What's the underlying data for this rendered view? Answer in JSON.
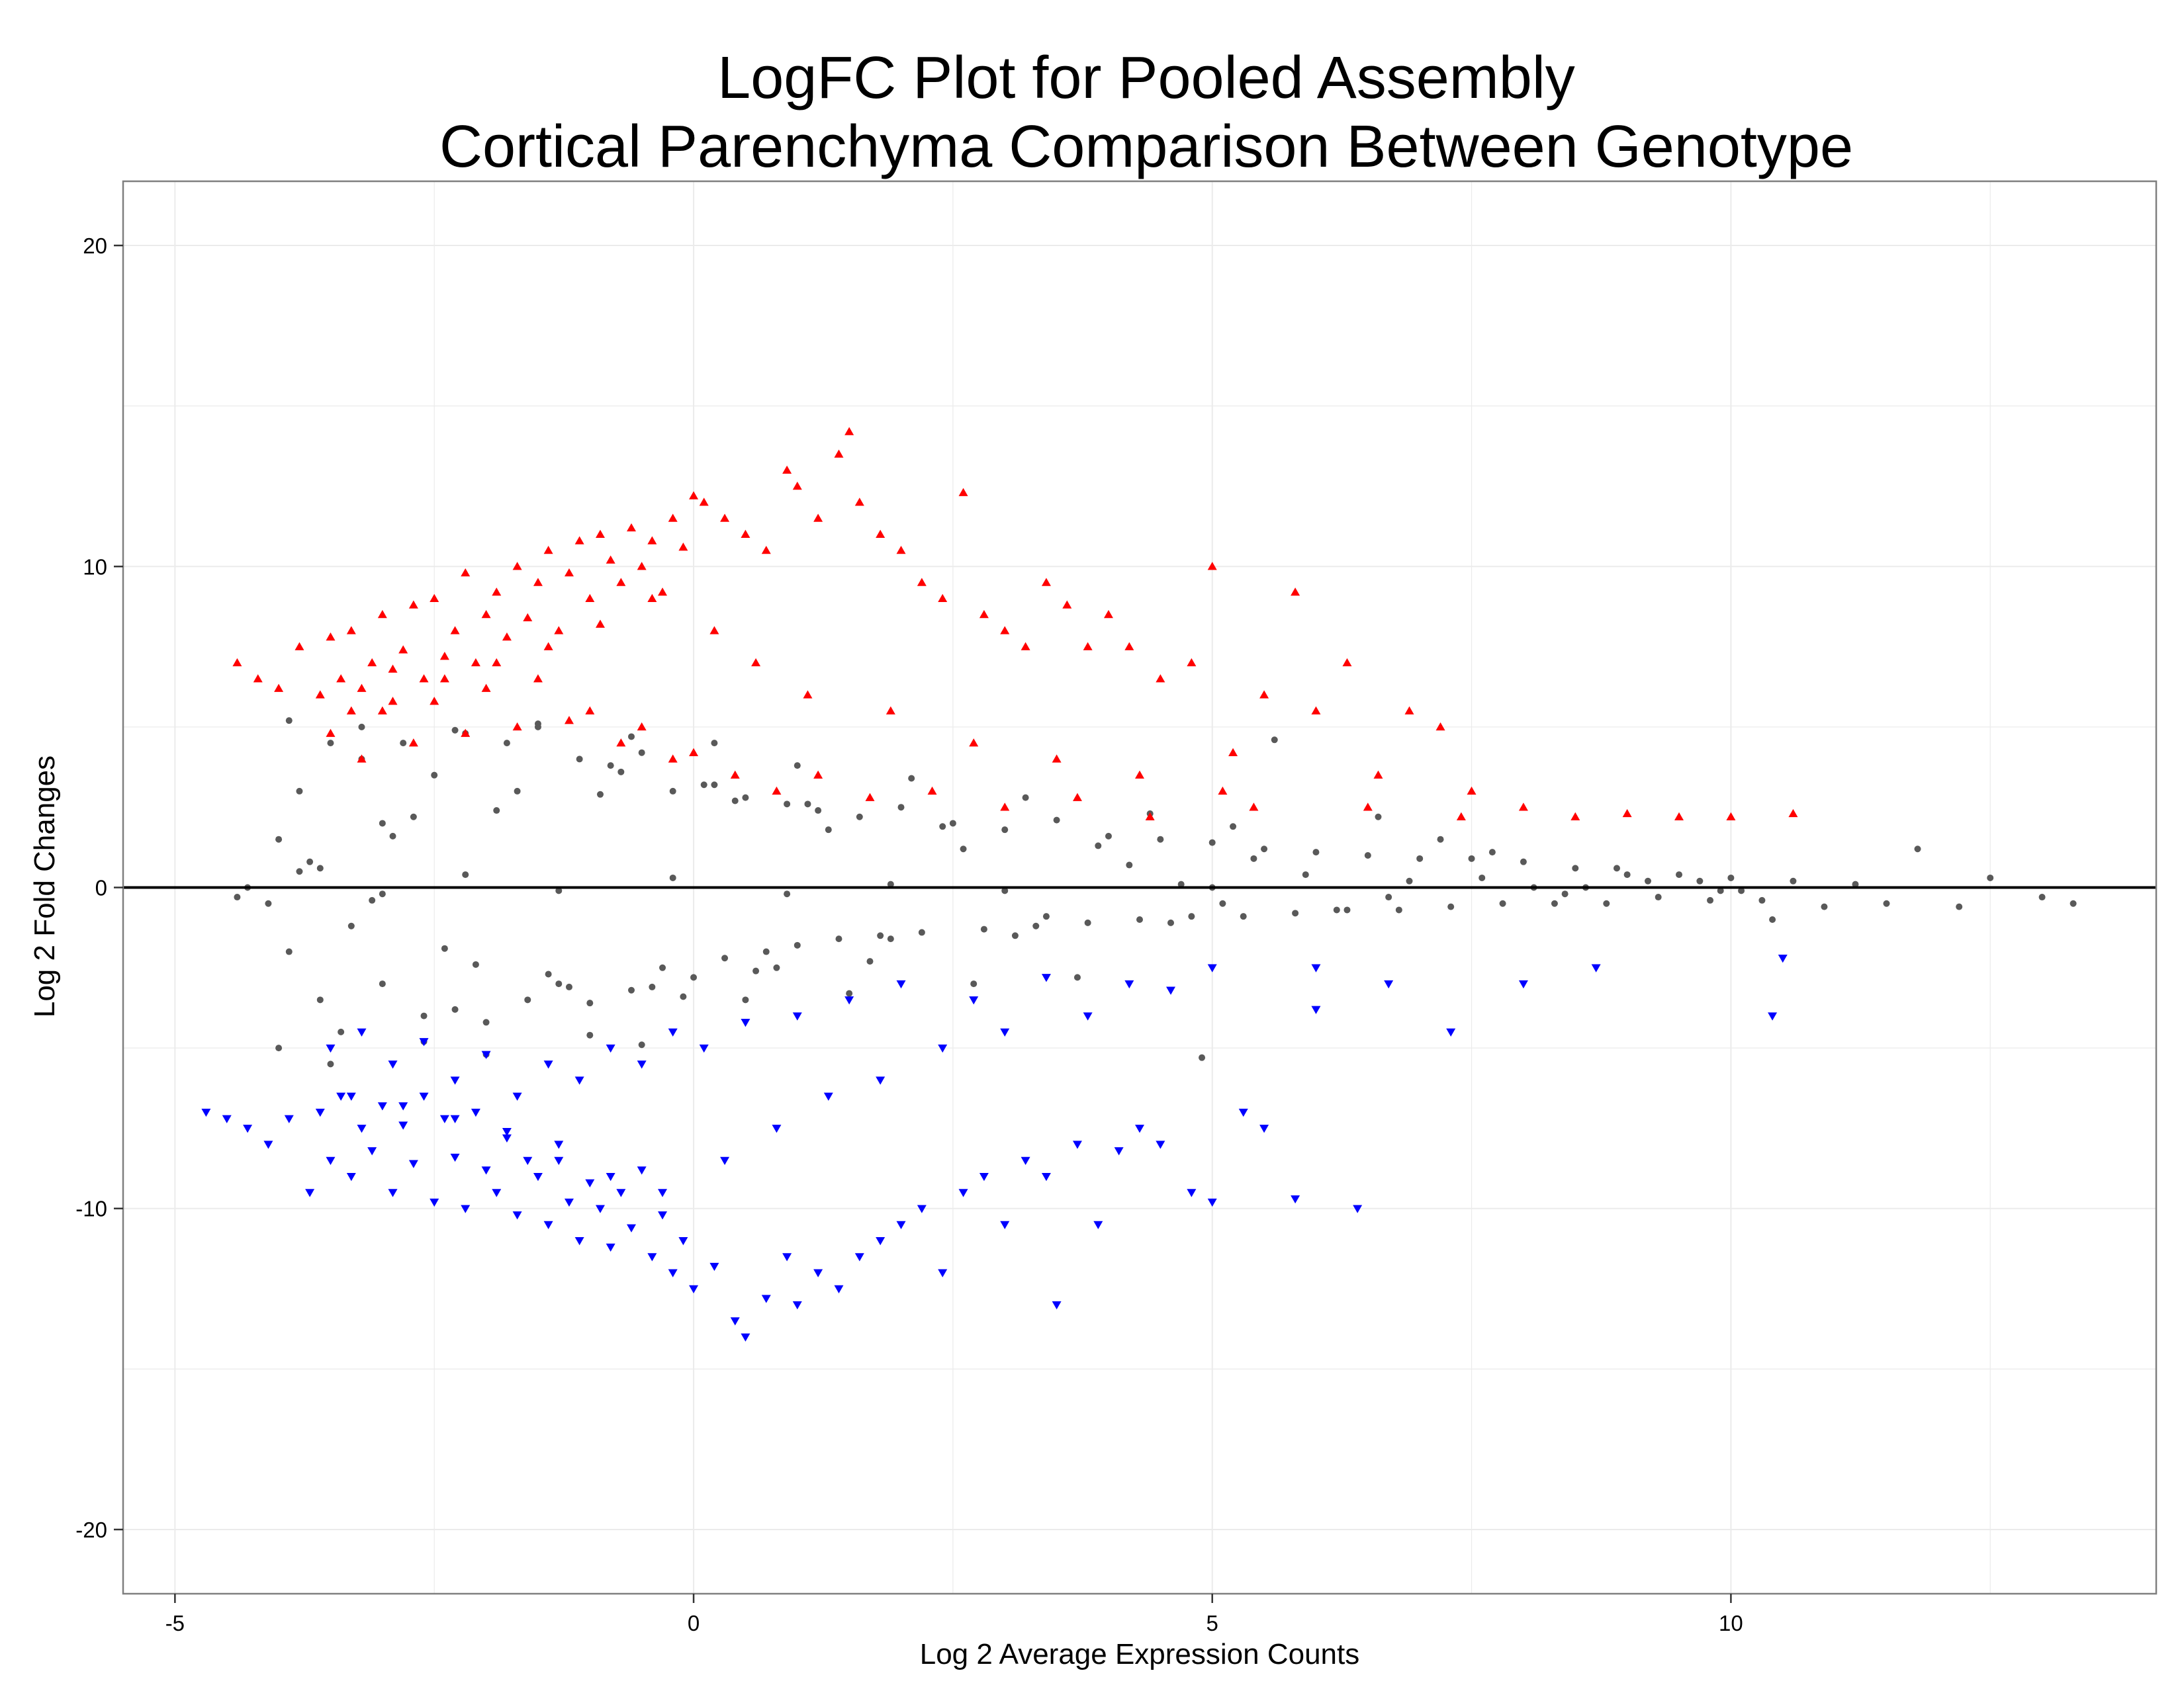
{
  "chart_data": {
    "type": "scatter",
    "title": [
      "LogFC Plot for Pooled Assembly",
      "Cortical Parenchyma Comparison Between Genotype"
    ],
    "xlabel": "Log 2 Average Expression Counts",
    "ylabel": "Log 2 Fold Changes",
    "xlim": [
      -5.5,
      14.1
    ],
    "ylim": [
      -22,
      22
    ],
    "x_ticks": [
      -5,
      0,
      5,
      10
    ],
    "x_tick_labels": [
      "-5",
      "0",
      "5",
      "10"
    ],
    "y_ticks": [
      -20,
      -10,
      0,
      10,
      20
    ],
    "y_tick_labels": [
      "-20",
      "-10",
      "0",
      "10",
      "20"
    ],
    "grid": true,
    "hline": 0,
    "legend": "none",
    "colors": {
      "not_significant": "#595959",
      "up": "#ff0000",
      "down": "#0000ff",
      "grid": "#ebebeb",
      "panel_border": "#7f7f7f",
      "zero_line": "#000000"
    },
    "series": [
      {
        "group": "not-significant",
        "marker": "circle",
        "x": [
          -4.3,
          -4.1,
          -4.0,
          -3.9,
          -3.8,
          -3.6,
          -3.5,
          -3.4,
          -3.2,
          -3.0,
          -3.0,
          -2.8,
          -2.6,
          -2.5,
          -2.3,
          -2.2,
          -2.0,
          -1.8,
          -1.6,
          -1.5,
          -1.3,
          -1.1,
          -1.0,
          -0.8,
          -0.6,
          -0.5,
          -0.3,
          -0.2,
          0.0,
          0.2,
          0.3,
          0.5,
          0.7,
          0.9,
          1.0,
          1.2,
          1.4,
          1.6,
          1.8,
          2.0,
          2.2,
          2.5,
          2.8,
          3.0,
          3.3,
          3.5,
          3.8,
          4.0,
          4.3,
          4.5,
          4.8,
          5.0,
          5.3,
          5.5,
          5.8,
          6.0,
          6.3,
          6.5,
          6.8,
          7.0,
          7.3,
          7.5,
          7.8,
          8.0,
          8.3,
          8.5,
          8.8,
          9.0,
          9.3,
          9.5,
          9.8,
          10.0,
          10.3,
          10.6,
          10.9,
          11.2,
          11.5,
          11.8,
          12.2,
          12.5,
          13.0,
          13.3,
          -3.7,
          -3.3,
          -2.9,
          -2.4,
          -1.9,
          -1.4,
          -0.9,
          -0.4,
          0.1,
          0.6,
          1.1,
          1.7,
          2.4,
          3.1,
          3.9,
          4.6,
          5.4,
          6.2,
          -3.6,
          -3.1,
          -2.7,
          -2.1,
          -1.7,
          -1.2,
          -0.7,
          -0.1,
          0.4,
          0.8,
          1.3,
          1.9,
          2.6,
          3.4,
          4.2,
          5.1,
          5.9,
          6.7,
          7.6,
          8.4,
          9.2,
          10.1,
          -4.0,
          -3.5,
          -2.6,
          -2.0,
          -1.0,
          -0.5,
          0.5,
          1.5,
          2.7,
          3.7,
          4.9,
          5.6,
          7.2,
          8.1,
          -3.9,
          -3.2,
          -2.3,
          -1.5,
          -0.6,
          0.2,
          1.0,
          2.1,
          3.2,
          4.4,
          5.2,
          6.6,
          7.7,
          8.9,
          9.7,
          10.4,
          -4.4,
          -3.8,
          -3.0,
          -2.2,
          -1.3,
          -0.2,
          0.9,
          1.9,
          3.0,
          4.7,
          5.0,
          6.9,
          8.6,
          9.9
        ],
        "y": [
          0.0,
          -0.5,
          1.5,
          -2.0,
          3.0,
          -3.5,
          4.5,
          -4.5,
          5.0,
          -3.0,
          2.0,
          4.5,
          -4.0,
          3.5,
          -3.8,
          4.8,
          -4.2,
          4.5,
          -3.5,
          5.0,
          -3.0,
          4.0,
          -3.6,
          3.8,
          -3.2,
          4.2,
          -2.5,
          3.0,
          -2.8,
          3.2,
          -2.2,
          2.8,
          -2.0,
          2.6,
          -1.8,
          2.4,
          -1.6,
          2.2,
          -1.5,
          2.5,
          -1.4,
          2.0,
          -1.3,
          1.8,
          -1.2,
          2.1,
          -1.1,
          1.6,
          -1.0,
          1.5,
          -0.9,
          1.4,
          -0.9,
          1.2,
          -0.8,
          1.1,
          -0.7,
          1.0,
          -0.7,
          0.9,
          -0.6,
          0.9,
          -0.5,
          0.8,
          -0.5,
          0.6,
          -0.5,
          0.4,
          -0.3,
          0.4,
          -0.4,
          0.3,
          -0.4,
          0.2,
          -0.6,
          0.1,
          -0.5,
          1.2,
          -0.6,
          0.3,
          -0.3,
          -0.5,
          0.8,
          -1.2,
          1.6,
          -1.9,
          2.4,
          -2.7,
          2.9,
          -3.1,
          3.2,
          -2.6,
          2.6,
          -2.3,
          1.9,
          -1.5,
          1.3,
          -1.1,
          0.9,
          -0.7,
          0.6,
          -0.4,
          2.2,
          -2.4,
          3.0,
          -3.1,
          3.6,
          -3.4,
          2.7,
          -2.5,
          1.8,
          -1.6,
          1.2,
          -0.9,
          0.7,
          -0.5,
          0.4,
          -0.3,
          0.3,
          -0.2,
          0.2,
          -0.1,
          -5.0,
          -5.5,
          -4.8,
          -5.2,
          -4.6,
          -4.9,
          -3.5,
          -3.3,
          -3.0,
          -2.8,
          -5.3,
          4.6,
          1.5,
          0.0,
          5.2,
          4.0,
          4.9,
          5.1,
          4.7,
          4.5,
          3.8,
          3.4,
          2.8,
          2.3,
          1.9,
          2.2,
          1.1,
          0.6,
          0.2,
          -1.0,
          -0.3,
          0.5,
          -0.2,
          0.4,
          -0.1,
          0.3,
          -0.2,
          0.1,
          -0.1,
          0.1,
          0.0,
          0.2,
          0.0,
          -0.1
        ]
      },
      {
        "group": "up-regulated",
        "marker": "triangle-up",
        "x": [
          -4.4,
          -4.2,
          -4.0,
          -3.8,
          -3.6,
          -3.5,
          -3.4,
          -3.3,
          -3.2,
          -3.1,
          -3.0,
          -2.9,
          -2.8,
          -2.7,
          -2.6,
          -2.5,
          -2.4,
          -2.3,
          -2.2,
          -2.1,
          -2.0,
          -1.9,
          -1.8,
          -1.7,
          -1.6,
          -1.5,
          -1.4,
          -1.3,
          -1.2,
          -1.1,
          -1.0,
          -0.9,
          -0.8,
          -0.7,
          -0.6,
          -0.5,
          -0.4,
          -0.3,
          -0.2,
          -0.1,
          0.0,
          0.1,
          0.3,
          0.5,
          0.7,
          0.9,
          1.0,
          1.2,
          1.4,
          1.5,
          1.6,
          1.8,
          2.0,
          2.2,
          2.4,
          2.6,
          2.8,
          3.0,
          3.2,
          3.4,
          3.6,
          3.8,
          4.0,
          4.2,
          4.5,
          4.8,
          5.0,
          5.2,
          5.5,
          5.8,
          6.0,
          6.3,
          6.6,
          6.9,
          7.2,
          7.5,
          8.0,
          8.5,
          9.0,
          9.5,
          10.0,
          10.6,
          -3.5,
          -3.2,
          -3.0,
          -2.7,
          -2.5,
          -2.2,
          -2.0,
          -1.7,
          -1.5,
          -1.2,
          -1.0,
          -0.7,
          -0.5,
          -0.2,
          0.0,
          0.4,
          0.8,
          1.2,
          1.7,
          2.3,
          3.0,
          3.7,
          4.4,
          5.4,
          -3.3,
          -2.9,
          -2.4,
          -1.9,
          -1.4,
          -0.9,
          -0.4,
          0.2,
          0.6,
          1.1,
          1.9,
          2.7,
          3.5,
          4.3,
          5.1,
          6.5,
          7.4
        ],
        "y": [
          7.0,
          6.5,
          6.2,
          7.5,
          6.0,
          7.8,
          6.5,
          8.0,
          6.2,
          7.0,
          8.5,
          6.8,
          7.4,
          8.8,
          6.5,
          9.0,
          7.2,
          8.0,
          9.8,
          7.0,
          8.5,
          9.2,
          7.8,
          10.0,
          8.4,
          9.5,
          10.5,
          8.0,
          9.8,
          10.8,
          9.0,
          11.0,
          10.2,
          9.5,
          11.2,
          10.0,
          10.8,
          9.2,
          11.5,
          10.6,
          12.2,
          12.0,
          11.5,
          11.0,
          10.5,
          13.0,
          12.5,
          11.5,
          13.5,
          14.2,
          12.0,
          11.0,
          10.5,
          9.5,
          9.0,
          12.3,
          8.5,
          8.0,
          7.5,
          9.5,
          8.8,
          7.5,
          8.5,
          7.5,
          6.5,
          7.0,
          10.0,
          4.2,
          6.0,
          9.2,
          5.5,
          7.0,
          3.5,
          5.5,
          5.0,
          3.0,
          2.5,
          2.2,
          2.3,
          2.2,
          2.2,
          2.3,
          4.8,
          4.0,
          5.5,
          4.5,
          5.8,
          4.8,
          6.2,
          5.0,
          6.5,
          5.2,
          5.5,
          4.5,
          5.0,
          4.0,
          4.2,
          3.5,
          3.0,
          3.5,
          2.8,
          3.0,
          2.5,
          2.8,
          2.2,
          2.5,
          5.5,
          5.8,
          6.5,
          7.0,
          7.5,
          8.2,
          9.0,
          8.0,
          7.0,
          6.0,
          5.5,
          4.5,
          4.0,
          3.5,
          3.0,
          2.5,
          2.2
        ]
      },
      {
        "group": "down-regulated",
        "marker": "triangle-down",
        "x": [
          -4.7,
          -4.5,
          -4.3,
          -4.1,
          -3.9,
          -3.7,
          -3.6,
          -3.5,
          -3.4,
          -3.3,
          -3.2,
          -3.1,
          -3.0,
          -2.9,
          -2.8,
          -2.7,
          -2.6,
          -2.5,
          -2.4,
          -2.3,
          -2.2,
          -2.1,
          -2.0,
          -1.9,
          -1.8,
          -1.7,
          -1.6,
          -1.5,
          -1.4,
          -1.3,
          -1.2,
          -1.1,
          -1.0,
          -0.9,
          -0.8,
          -0.7,
          -0.6,
          -0.5,
          -0.4,
          -0.3,
          -0.2,
          -0.1,
          0.0,
          0.2,
          0.4,
          0.5,
          0.7,
          0.9,
          1.0,
          1.2,
          1.4,
          1.6,
          1.8,
          2.0,
          2.2,
          2.4,
          2.6,
          2.8,
          3.0,
          3.2,
          3.4,
          3.5,
          3.7,
          3.9,
          4.1,
          4.3,
          4.5,
          4.8,
          5.0,
          5.3,
          5.5,
          5.8,
          6.0,
          6.4,
          6.7,
          7.3,
          8.0,
          8.7,
          10.4,
          10.5,
          -3.5,
          -3.2,
          -2.9,
          -2.6,
          -2.3,
          -2.0,
          -1.7,
          -1.4,
          -1.1,
          -0.8,
          -0.5,
          -0.2,
          0.1,
          0.5,
          1.0,
          1.5,
          2.0,
          2.7,
          3.4,
          4.2,
          5.0,
          6.0,
          -3.3,
          -2.8,
          -2.3,
          -1.8,
          -1.3,
          -0.8,
          -0.3,
          0.3,
          0.8,
          1.3,
          1.8,
          2.4,
          3.0,
          3.8,
          4.6
        ],
        "y": [
          -7.0,
          -7.2,
          -7.5,
          -8.0,
          -7.2,
          -9.5,
          -7.0,
          -8.5,
          -6.5,
          -9.0,
          -7.5,
          -8.2,
          -6.8,
          -9.5,
          -7.4,
          -8.6,
          -6.5,
          -9.8,
          -7.2,
          -8.4,
          -10.0,
          -7.0,
          -8.8,
          -9.5,
          -7.6,
          -10.2,
          -8.5,
          -9.0,
          -10.5,
          -8.0,
          -9.8,
          -11.0,
          -9.2,
          -10.0,
          -11.2,
          -9.5,
          -10.6,
          -8.8,
          -11.5,
          -10.2,
          -12.0,
          -11.0,
          -12.5,
          -11.8,
          -13.5,
          -14.0,
          -12.8,
          -11.5,
          -13.0,
          -12.0,
          -12.5,
          -11.5,
          -11.0,
          -10.5,
          -10.0,
          -12.0,
          -9.5,
          -9.0,
          -10.5,
          -8.5,
          -9.0,
          -13.0,
          -8.0,
          -10.5,
          -8.2,
          -7.5,
          -8.0,
          -9.5,
          -9.8,
          -7.0,
          -7.5,
          -9.7,
          -3.8,
          -10.0,
          -3.0,
          -4.5,
          -3.0,
          -2.5,
          -4.0,
          -2.2,
          -5.0,
          -4.5,
          -5.5,
          -4.8,
          -6.0,
          -5.2,
          -6.5,
          -5.5,
          -6.0,
          -5.0,
          -5.5,
          -4.5,
          -5.0,
          -4.2,
          -4.0,
          -3.5,
          -3.0,
          -3.5,
          -2.8,
          -3.0,
          -2.5,
          -2.5,
          -6.5,
          -6.8,
          -7.2,
          -7.8,
          -8.5,
          -9.0,
          -9.5,
          -8.5,
          -7.5,
          -6.5,
          -6.0,
          -5.0,
          -4.5,
          -4.0,
          -3.2
        ]
      }
    ]
  }
}
